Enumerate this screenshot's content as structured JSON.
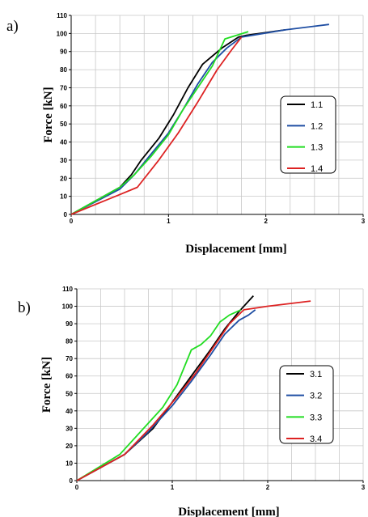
{
  "chart_data": [
    {
      "type": "line",
      "panel_label": "a)",
      "xlabel": "Displacement [mm]",
      "ylabel": "Force [kN]",
      "xlim": [
        0,
        3
      ],
      "ylim": [
        0,
        110
      ],
      "xticks": [
        "0",
        "1",
        "2",
        "3"
      ],
      "yticks": [
        "0",
        "10",
        "20",
        "30",
        "40",
        "50",
        "60",
        "70",
        "80",
        "90",
        "100",
        "110"
      ],
      "grid": true,
      "legend_position": "center-right",
      "series": [
        {
          "name": "1.1",
          "color": "#000000",
          "points": [
            [
              0,
              0
            ],
            [
              0.5,
              15
            ],
            [
              0.62,
              22
            ],
            [
              0.72,
              30
            ],
            [
              0.9,
              42
            ],
            [
              1.05,
              55
            ],
            [
              1.2,
              70
            ],
            [
              1.35,
              83
            ],
            [
              1.55,
              92
            ],
            [
              1.72,
              98
            ],
            [
              1.8,
              99
            ],
            [
              2.2,
              102
            ]
          ]
        },
        {
          "name": "1.2",
          "color": "#1f4ea3",
          "points": [
            [
              0,
              0
            ],
            [
              0.5,
              14
            ],
            [
              0.65,
              22
            ],
            [
              0.8,
              32
            ],
            [
              1.0,
              45
            ],
            [
              1.15,
              58
            ],
            [
              1.3,
              72
            ],
            [
              1.45,
              84
            ],
            [
              1.6,
              92
            ],
            [
              1.75,
              98
            ],
            [
              2.2,
              102
            ],
            [
              2.65,
              105
            ]
          ]
        },
        {
          "name": "1.3",
          "color": "#22dd22",
          "points": [
            [
              0,
              0
            ],
            [
              0.5,
              15
            ],
            [
              0.65,
              22
            ],
            [
              0.82,
              32
            ],
            [
              1.0,
              44
            ],
            [
              1.15,
              58
            ],
            [
              1.3,
              70
            ],
            [
              1.45,
              82
            ],
            [
              1.58,
              97
            ],
            [
              1.7,
              99
            ],
            [
              1.82,
              101
            ]
          ]
        },
        {
          "name": "1.4",
          "color": "#dd2222",
          "points": [
            [
              0,
              0
            ],
            [
              0.5,
              11
            ],
            [
              0.68,
              15
            ],
            [
              0.9,
              30
            ],
            [
              1.1,
              45
            ],
            [
              1.3,
              62
            ],
            [
              1.5,
              80
            ],
            [
              1.65,
              91
            ],
            [
              1.75,
              98
            ]
          ]
        }
      ]
    },
    {
      "type": "line",
      "panel_label": "b)",
      "xlabel": "Displacement [mm]",
      "ylabel": "Force [kN]",
      "xlim": [
        0,
        3
      ],
      "ylim": [
        0,
        110
      ],
      "xticks": [
        "0",
        "1",
        "2",
        "3"
      ],
      "yticks": [
        "0",
        "10",
        "20",
        "30",
        "40",
        "50",
        "60",
        "70",
        "80",
        "90",
        "100",
        "110"
      ],
      "grid": true,
      "legend_position": "center-right",
      "series": [
        {
          "name": "3.1",
          "color": "#000000",
          "points": [
            [
              0,
              0
            ],
            [
              0.5,
              15
            ],
            [
              0.8,
              30
            ],
            [
              1.0,
              45
            ],
            [
              1.2,
              60
            ],
            [
              1.4,
              75
            ],
            [
              1.55,
              87
            ],
            [
              1.7,
              97
            ],
            [
              1.85,
              106
            ]
          ]
        },
        {
          "name": "3.2",
          "color": "#1f4ea3",
          "points": [
            [
              0,
              0
            ],
            [
              0.5,
              15
            ],
            [
              0.75,
              28
            ],
            [
              1.0,
              43
            ],
            [
              1.2,
              57
            ],
            [
              1.4,
              72
            ],
            [
              1.55,
              84
            ],
            [
              1.7,
              92
            ],
            [
              1.8,
              95
            ],
            [
              1.87,
              98
            ]
          ]
        },
        {
          "name": "3.3",
          "color": "#22dd22",
          "points": [
            [
              0,
              0
            ],
            [
              0.45,
              15
            ],
            [
              0.7,
              30
            ],
            [
              0.9,
              42
            ],
            [
              1.05,
              55
            ],
            [
              1.2,
              75
            ],
            [
              1.3,
              78
            ],
            [
              1.4,
              83
            ],
            [
              1.5,
              91
            ],
            [
              1.6,
              95
            ],
            [
              1.72,
              98
            ]
          ]
        },
        {
          "name": "3.4",
          "color": "#dd2222",
          "points": [
            [
              0,
              0
            ],
            [
              0.5,
              15
            ],
            [
              0.8,
              32
            ],
            [
              1.05,
              48
            ],
            [
              1.25,
              62
            ],
            [
              1.45,
              78
            ],
            [
              1.6,
              90
            ],
            [
              1.75,
              98
            ],
            [
              2.0,
              100
            ],
            [
              2.45,
              103
            ]
          ]
        }
      ]
    }
  ]
}
